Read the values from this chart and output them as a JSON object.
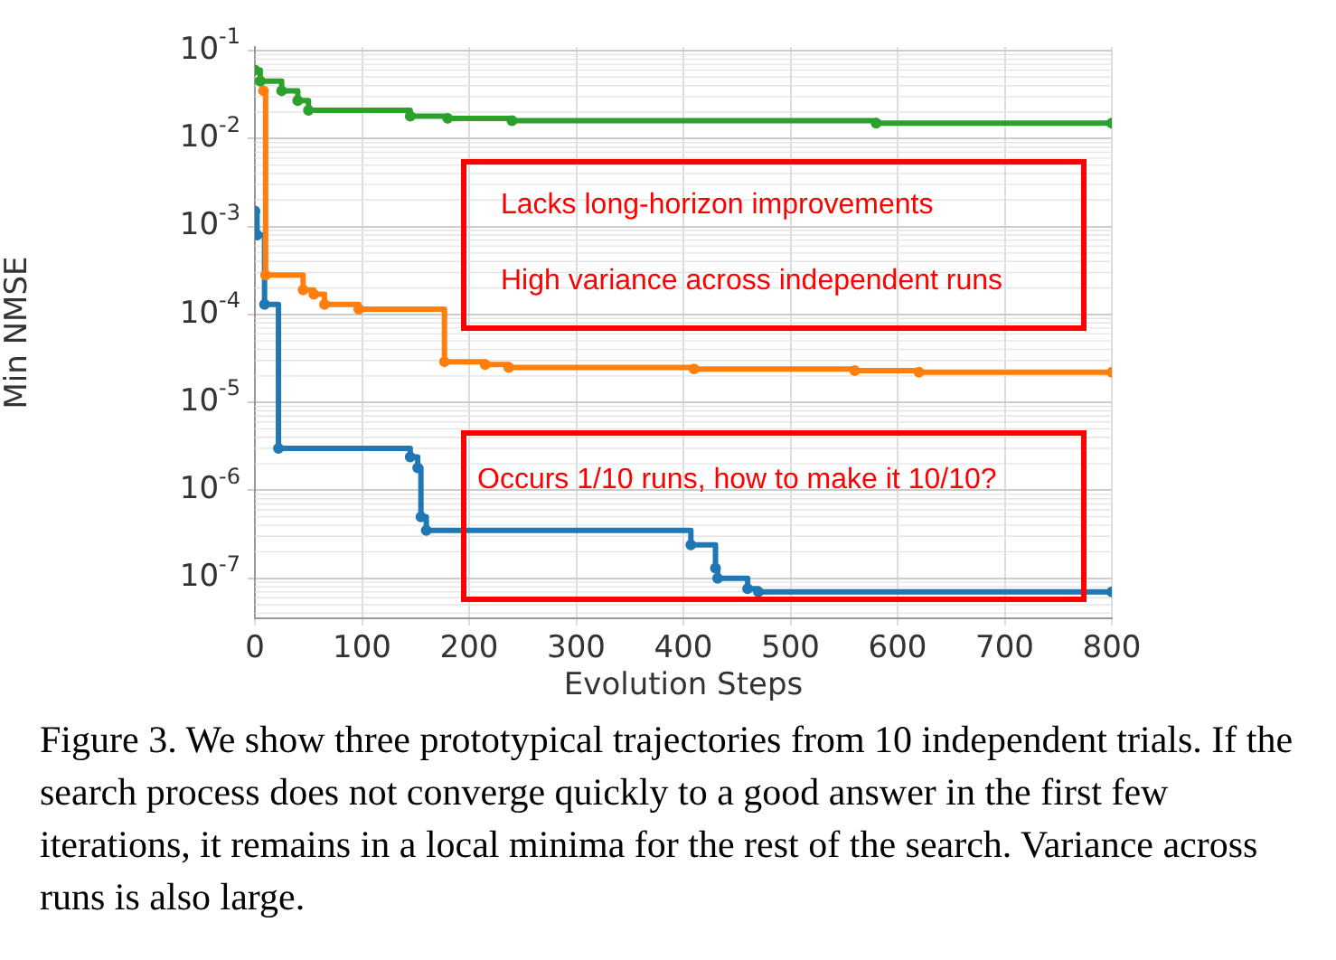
{
  "chart_data": {
    "type": "step",
    "xlabel": "Evolution Steps",
    "ylabel": "Min NMSE",
    "log": "y",
    "grid": true,
    "marker": "circle",
    "line_style": "solid",
    "legend": false,
    "xlim": [
      0,
      800
    ],
    "xticks": [
      0,
      100,
      200,
      300,
      400,
      500,
      600,
      700,
      800
    ],
    "ylim": [
      3.5e-08,
      0.11
    ],
    "yticks": [
      {
        "value": 1e-07,
        "label": "10$^{-7}$"
      },
      {
        "value": 1e-06,
        "label": "10$^{-6}$"
      },
      {
        "value": 1e-05,
        "label": "10$^{-5}$"
      },
      {
        "value": 0.0001,
        "label": "10$^{-4}$"
      },
      {
        "value": 0.001,
        "label": "10$^{-3}$"
      },
      {
        "value": 0.01,
        "label": "10$^{-2}$"
      },
      {
        "value": 0.1,
        "label": "10$^{-1}$"
      }
    ],
    "series": [
      {
        "color": "#2ca02c",
        "x": [
          0,
          5,
          25,
          40,
          50,
          145,
          180,
          240,
          580,
          800
        ],
        "values": [
          0.06,
          0.045,
          0.035,
          0.027,
          0.021,
          0.018,
          0.017,
          0.016,
          0.015,
          0.015
        ]
      },
      {
        "color": "#ff7f0e",
        "x": [
          8,
          10,
          45,
          55,
          65,
          97,
          177,
          215,
          237,
          410,
          560,
          620,
          800
        ],
        "values": [
          0.035,
          0.00028,
          0.00019,
          0.00017,
          0.00013,
          0.000115,
          2.9e-05,
          2.7e-05,
          2.5e-05,
          2.4e-05,
          2.3e-05,
          2.2e-05,
          2.2e-05
        ]
      },
      {
        "color": "#1f77b4",
        "x": [
          0,
          2,
          9,
          22,
          145,
          152,
          155,
          160,
          407,
          430,
          432,
          460,
          470,
          800
        ],
        "values": [
          0.0015,
          0.0008,
          0.00013,
          3e-06,
          2.4e-06,
          1.8e-06,
          5e-07,
          3.5e-07,
          2.4e-07,
          1.3e-07,
          1e-07,
          7.6e-08,
          7e-08,
          7e-08
        ]
      }
    ],
    "annotations": [
      "Lacks long-horizon improvements",
      "High variance across independent runs",
      "Occurs 1/10 runs, how to make it 10/10?",
      "Figure 3. We show three prototypical trajectories from 10 independent trials. If the search process does not converge quickly to a good answer in the first few iterations, it remains in a local minima for the rest of the search. Variance across runs is also large."
    ]
  }
}
